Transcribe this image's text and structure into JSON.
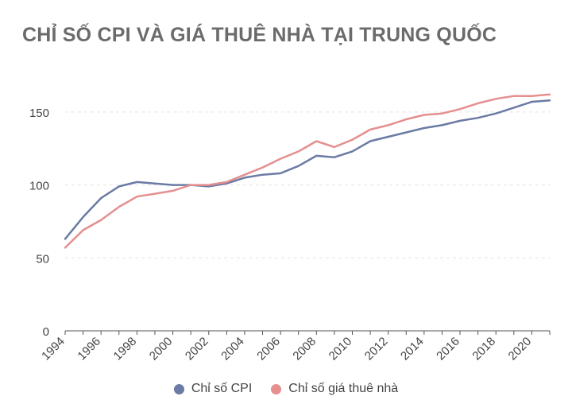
{
  "chart_data": {
    "type": "line",
    "title": "CHỈ SỐ CPI VÀ GIÁ THUÊ NHÀ TẠI TRUNG QUỐC",
    "xlabel": "",
    "ylabel": "",
    "ylim": [
      0,
      175
    ],
    "yticks": [
      0,
      50,
      100,
      150
    ],
    "xticks": [
      "1994",
      "1996",
      "1998",
      "2000",
      "2002",
      "2004",
      "2006",
      "2008",
      "2010",
      "2012",
      "2014",
      "2016",
      "2018",
      "2020"
    ],
    "grid": "horizontal-dashed",
    "legend": "bottom-center",
    "x": [
      1994,
      1995,
      1996,
      1997,
      1998,
      1999,
      2000,
      2001,
      2002,
      2003,
      2004,
      2005,
      2006,
      2007,
      2008,
      2009,
      2010,
      2011,
      2012,
      2013,
      2014,
      2015,
      2016,
      2017,
      2018,
      2019,
      2020,
      2021
    ],
    "series": [
      {
        "name": "Chỉ số CPI",
        "color": "#6b7ba4",
        "values": [
          63,
          78,
          91,
          99,
          102,
          101,
          100,
          100,
          99,
          101,
          105,
          107,
          108,
          113,
          120,
          119,
          123,
          130,
          133,
          136,
          139,
          141,
          144,
          146,
          149,
          153,
          157,
          158
        ]
      },
      {
        "name": "Chỉ số giá thuê nhà",
        "color": "#e58f8f",
        "values": [
          57,
          69,
          76,
          85,
          92,
          94,
          96,
          100,
          100,
          102,
          107,
          112,
          118,
          123,
          130,
          126,
          131,
          138,
          141,
          145,
          148,
          149,
          152,
          156,
          159,
          161,
          161,
          162
        ]
      }
    ]
  }
}
